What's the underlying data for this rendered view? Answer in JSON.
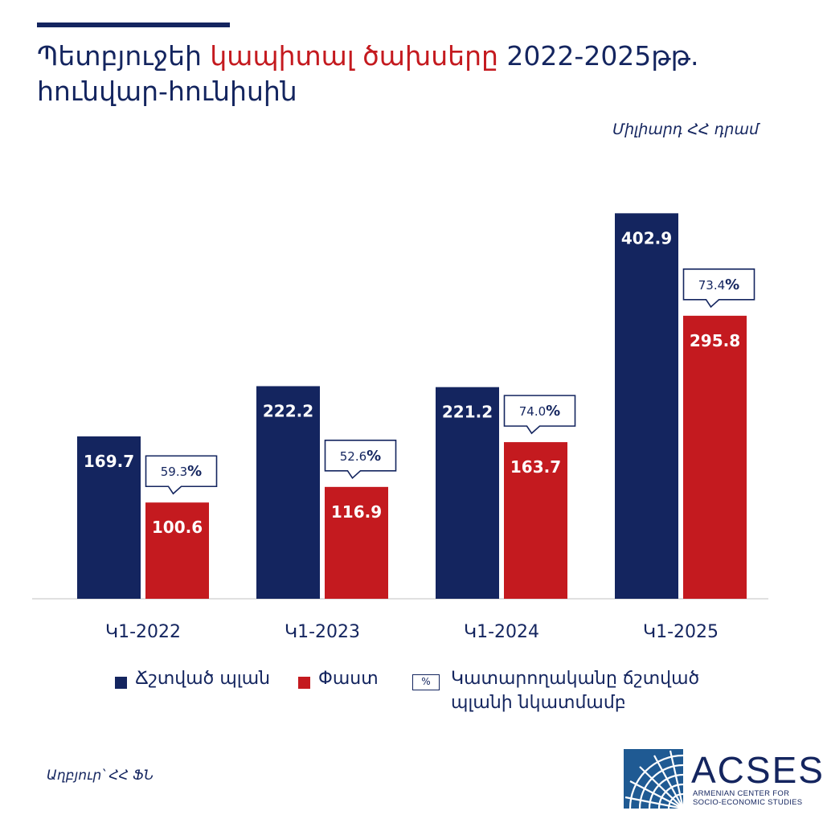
{
  "header": {
    "title_part1": "Պետբյուջեի ",
    "title_accent": "կապիտալ ծախսերը",
    "title_part2": " 2022-2025թթ. հունվար-հունիսին",
    "units": "Միլիարդ ՀՀ դրամ"
  },
  "chart_data": {
    "type": "bar",
    "categories": [
      "Կ1-2022",
      "Կ1-2023",
      "Կ1-2024",
      "Կ1-2025"
    ],
    "series": [
      {
        "name": "Ճշտված պլան",
        "values": [
          169.7,
          222.2,
          221.2,
          402.9
        ],
        "value_labels": [
          "169.7",
          "222.2",
          "221.2",
          "402.9"
        ],
        "color": "#14255f"
      },
      {
        "name": "Փաստ",
        "values": [
          100.6,
          116.9,
          163.7,
          295.8
        ],
        "value_labels": [
          "100.6",
          "116.9",
          "163.7",
          "295.8"
        ],
        "color": "#c41a1f"
      }
    ],
    "execution_labels": [
      {
        "num": "59.3",
        "sym": "%"
      },
      {
        "num": "52.6",
        "sym": "%"
      },
      {
        "num": "74.0",
        "sym": "%"
      },
      {
        "num": "73.4",
        "sym": "%"
      }
    ],
    "ylim": [
      0,
      420
    ],
    "grid": false
  },
  "legend": {
    "plan_label": "Ճշտված պլան",
    "fact_label": "Փաստ",
    "pct_symbol": "%",
    "pct_label_line1": "Կատարողականը ճշտված",
    "pct_label_line2": "պլանի նկատմամբ"
  },
  "footer": {
    "source": "Աղբյուր՝ ՀՀ ՖՆ",
    "logo_text": "ACSES",
    "logo_sub_line1": "ARMENIAN CENTER FOR",
    "logo_sub_line2": "SOCIO-ECONOMIC STUDIES"
  },
  "colors": {
    "navy": "#14255f",
    "red": "#c41a1f"
  }
}
